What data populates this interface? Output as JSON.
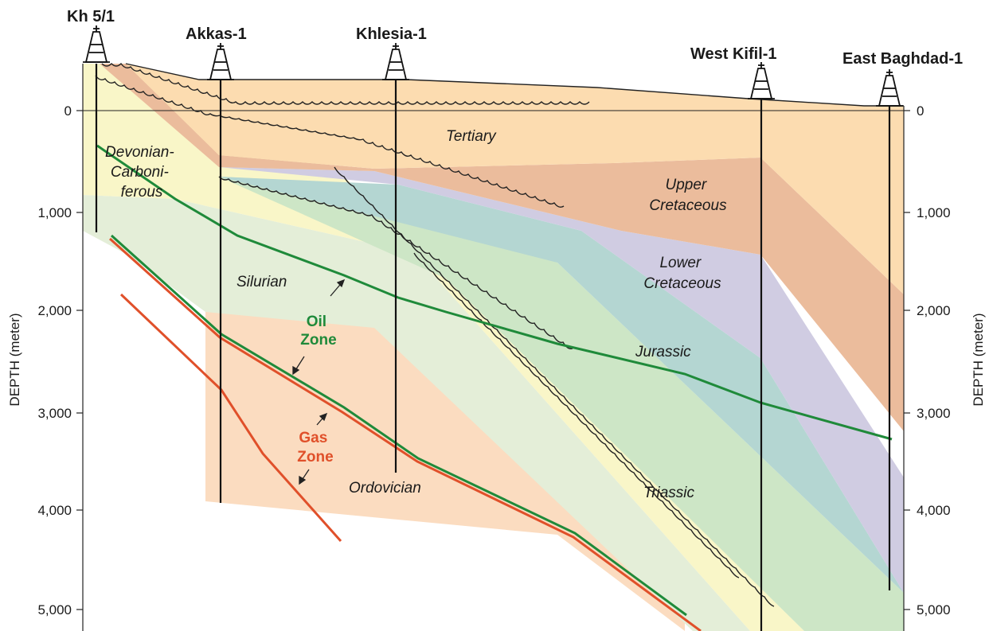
{
  "wells": [
    "Kh 5/1",
    "Akkas-1",
    "Khlesia-1",
    "West Kifil-1",
    "East Baghdad-1"
  ],
  "units": {
    "tertiary": "Tertiary",
    "upper_cretaceous": [
      "Upper",
      "Cretaceous"
    ],
    "lower_cretaceous": [
      "Lower",
      "Cretaceous"
    ],
    "jurassic": "Jurassic",
    "triassic": "Triassic",
    "devonian": [
      "Devonian-",
      "Carboni-",
      "ferous"
    ],
    "silurian": "Silurian",
    "ordovician": "Ordovician"
  },
  "zones": {
    "oil": [
      "Oil",
      "Zone"
    ],
    "gas": [
      "Gas",
      "Zone"
    ]
  },
  "axis": {
    "label": "DEPTH (meter)",
    "ticks": [
      "0",
      "1,000",
      "2,000",
      "3,000",
      "4,000",
      "5,000"
    ],
    "tick_values": [
      0,
      1000,
      2000,
      3000,
      4000,
      5000
    ]
  },
  "colors": {
    "tertiary": "#fcdcb0",
    "upper_cretaceous": "#ebbc9c",
    "lower_cretaceous": "#d0cce2",
    "jurassic": "#b4d6d2",
    "triassic": "#cde6c6",
    "devonian": "#f9f6c8",
    "silurian": "#e4eed8",
    "ordovician": "#fbdcc0",
    "oil_line": "#1f8a3a",
    "gas_line": "#e0502a",
    "oil_label": "#1f8a3a",
    "gas_label": "#e0502a"
  }
}
